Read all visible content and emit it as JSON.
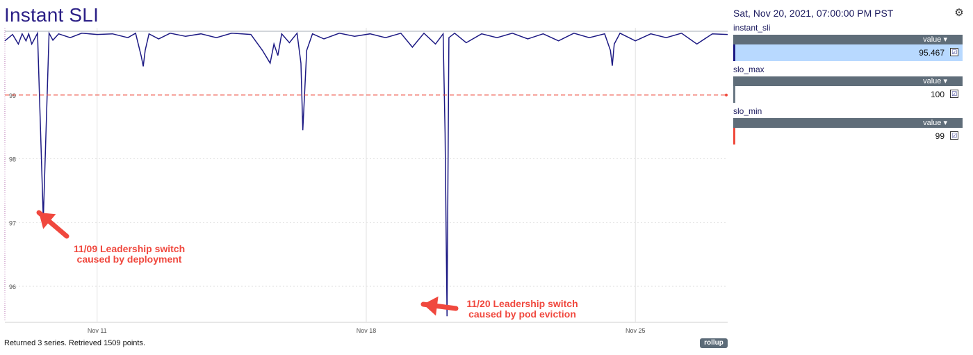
{
  "header": {
    "title": "Instant SLI"
  },
  "panel": {
    "timestamp": "Sat, Nov 20, 2021, 07:00:00 PM PST",
    "legend": [
      {
        "name": "instant_sli",
        "header": "value",
        "value": "95.467",
        "color": "#1d1a84",
        "row_bg": "#b8d9ff"
      },
      {
        "name": "slo_max",
        "header": "value",
        "value": "100",
        "color": "#6a7884",
        "row_bg": "#ffffff"
      },
      {
        "name": "slo_min",
        "header": "value",
        "value": "99",
        "color": "#f04a3c",
        "row_bg": "#ffffff"
      }
    ]
  },
  "footer": {
    "status": "Returned 3 series. Retrieved 1509 points.",
    "rollup_label": "rollup"
  },
  "annotations": [
    {
      "line1": "11/09 Leadership switch",
      "line2": "caused by deployment"
    },
    {
      "line1": "11/20 Leadership switch",
      "line2": "caused by pod eviction"
    }
  ],
  "chart_data": {
    "type": "line",
    "ylim": [
      95.5,
      100
    ],
    "yticks": [
      "96",
      "97",
      "98",
      "99"
    ],
    "ytick_values": [
      96,
      97,
      98,
      99
    ],
    "xticks": [
      "Nov 11",
      "Nov 18",
      "Nov 25"
    ],
    "xtick_days": [
      11,
      18,
      25
    ],
    "xlim_days": [
      8.6,
      27.4
    ],
    "series": [
      {
        "name": "instant_sli",
        "color": "#1d1a84",
        "x": [
          8.6,
          8.8,
          8.95,
          9.05,
          9.15,
          9.22,
          9.3,
          9.45,
          9.6,
          9.75,
          9.85,
          10.0,
          10.3,
          10.6,
          11.0,
          11.4,
          11.8,
          12.0,
          12.15,
          12.2,
          12.25,
          12.35,
          12.6,
          12.9,
          13.3,
          13.7,
          14.1,
          14.5,
          15.0,
          15.3,
          15.5,
          15.6,
          15.7,
          15.8,
          16.0,
          16.2,
          16.3,
          16.35,
          16.45,
          16.6,
          16.9,
          17.3,
          17.7,
          18.1,
          18.5,
          18.9,
          19.2,
          19.5,
          19.8,
          20.0,
          20.05,
          20.1,
          20.15,
          20.3,
          20.6,
          21.0,
          21.4,
          21.8,
          22.2,
          22.6,
          23.0,
          23.4,
          23.8,
          24.2,
          24.35,
          24.4,
          24.45,
          24.6,
          25.0,
          25.4,
          25.8,
          26.2,
          26.6,
          27.0,
          27.4
        ],
        "y": [
          99.85,
          99.95,
          99.8,
          99.96,
          99.85,
          99.96,
          99.8,
          99.97,
          97.05,
          99.97,
          99.86,
          99.96,
          99.9,
          99.97,
          99.95,
          99.96,
          99.9,
          99.97,
          99.6,
          99.45,
          99.7,
          99.96,
          99.88,
          99.97,
          99.92,
          99.96,
          99.9,
          99.97,
          99.95,
          99.7,
          99.5,
          99.8,
          99.62,
          99.96,
          99.82,
          99.97,
          99.5,
          98.45,
          99.7,
          99.96,
          99.88,
          99.97,
          99.92,
          99.96,
          99.9,
          99.97,
          99.75,
          99.97,
          99.8,
          99.96,
          98.4,
          95.53,
          99.9,
          99.97,
          99.82,
          99.96,
          99.9,
          99.97,
          99.88,
          99.96,
          99.85,
          99.97,
          99.9,
          99.96,
          99.7,
          99.46,
          99.8,
          99.97,
          99.85,
          99.96,
          99.9,
          99.97,
          99.8,
          99.96,
          99.95
        ]
      },
      {
        "name": "slo_max",
        "color": "#6a7884",
        "x": [
          8.6,
          27.4
        ],
        "y": [
          100,
          100
        ]
      },
      {
        "name": "slo_min",
        "color": "#f04a3c",
        "x": [
          8.6,
          27.4
        ],
        "y": [
          99,
          99
        ]
      }
    ]
  }
}
